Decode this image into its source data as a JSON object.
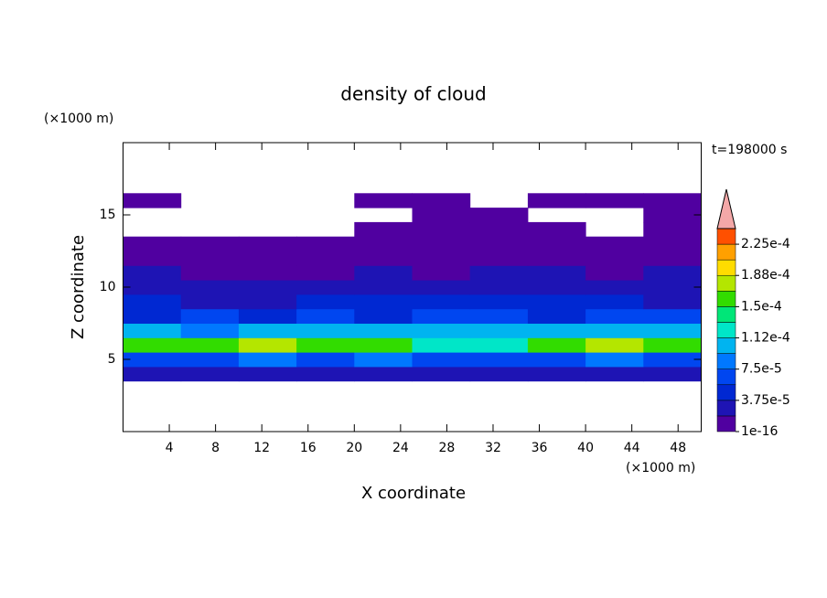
{
  "chart_data": {
    "type": "contour",
    "title": "density of cloud",
    "subtitle": "t=198000 s",
    "x_label": "X coordinate",
    "y_label": "Z coordinate",
    "x_unit": "(×1000 m)",
    "y_unit": "(×1000 m)",
    "xlim": [
      0,
      50
    ],
    "ylim": [
      0,
      20
    ],
    "xticks": [
      4,
      8,
      12,
      16,
      20,
      24,
      28,
      32,
      36,
      40,
      44,
      48
    ],
    "yticks": [
      5,
      10,
      15
    ],
    "x": [
      2.5,
      7.5,
      12.5,
      17.5,
      22.5,
      27.5,
      32.5,
      37.5,
      42.5,
      47.5
    ],
    "z": [
      4,
      5,
      6,
      7,
      8,
      9,
      10,
      11,
      12,
      13,
      14,
      15,
      16
    ],
    "values": [
      [
        2.5e-05,
        3e-05,
        2.8e-05,
        3.2e-05,
        3e-05,
        3.4e-05,
        2.6e-05,
        3e-05,
        2.9e-05,
        3.1e-05
      ],
      [
        7e-05,
        6.5e-05,
        7.5e-05,
        7e-05,
        8e-05,
        7e-05,
        6e-05,
        7.2e-05,
        7.8e-05,
        7e-05
      ],
      [
        0.00016,
        0.00015,
        0.000175,
        0.000155,
        0.00016,
        0.00013,
        0.00012,
        0.00015,
        0.00018,
        0.00016
      ],
      [
        0.0001,
        9e-05,
        0.00011,
        0.000105,
        0.00011,
        9.5e-05,
        0.0001,
        0.0001,
        0.00011,
        0.0001
      ],
      [
        5.5e-05,
        6e-05,
        5e-05,
        6.5e-05,
        5.5e-05,
        7e-05,
        6e-05,
        5.5e-05,
        6.5e-05,
        6e-05
      ],
      [
        3.8e-05,
        3.5e-05,
        3e-05,
        4.5e-05,
        4e-05,
        4.5e-05,
        4e-05,
        3.8e-05,
        4.2e-05,
        3.5e-05
      ],
      [
        2.5e-05,
        2.2e-05,
        2e-05,
        2.6e-05,
        2.8e-05,
        2.4e-05,
        3e-05,
        2.6e-05,
        2.3e-05,
        2.5e-05
      ],
      [
        1.9e-05,
        1.5e-05,
        1.2e-05,
        1.6e-05,
        1.9e-05,
        1.7e-05,
        1.9e-05,
        2e-05,
        1.8e-05,
        1.9e-05
      ],
      [
        1e-05,
        8e-06,
        6e-06,
        1e-05,
        1.2e-05,
        8e-06,
        1e-05,
        1.2e-05,
        1e-05,
        1.1e-05
      ],
      [
        5e-06,
        3e-06,
        2e-06,
        4e-06,
        5e-06,
        4e-06,
        5e-06,
        6e-06,
        5e-06,
        6e-06
      ],
      [
        null,
        null,
        null,
        null,
        2e-06,
        3e-06,
        3e-06,
        2e-06,
        null,
        4e-06
      ],
      [
        null,
        null,
        null,
        null,
        null,
        2e-06,
        2e-06,
        null,
        null,
        3e-06
      ],
      [
        2e-06,
        null,
        null,
        null,
        1e-06,
        2e-06,
        null,
        1e-06,
        2e-06,
        2e-06
      ]
    ],
    "levels": [
      1e-16,
      1.875e-05,
      3.75e-05,
      5.625e-05,
      7.5e-05,
      9.375e-05,
      0.0001125,
      0.00013125,
      0.00015,
      0.00016875,
      0.0001875,
      0.00020625,
      0.000225,
      0.00024375
    ],
    "colors": [
      "#5000a0",
      "#1e14b4",
      "#0028d2",
      "#0046f0",
      "#0078ff",
      "#00b4f0",
      "#00e6c8",
      "#00e678",
      "#32dc00",
      "#b4e600",
      "#ffdc00",
      "#ffa000",
      "#ff5000"
    ],
    "extend_color": "#f4a8a8",
    "colorbar_ticks": [
      {
        "value": 1e-16,
        "label": "1e-16"
      },
      {
        "value": 3.75e-05,
        "label": "3.75e-5"
      },
      {
        "value": 7.5e-05,
        "label": "7.5e-5"
      },
      {
        "value": 0.0001125,
        "label": "1.12e-4"
      },
      {
        "value": 0.00015,
        "label": "1.5e-4"
      },
      {
        "value": 0.0001875,
        "label": "1.88e-4"
      },
      {
        "value": 0.000225,
        "label": "2.25e-4"
      }
    ]
  }
}
